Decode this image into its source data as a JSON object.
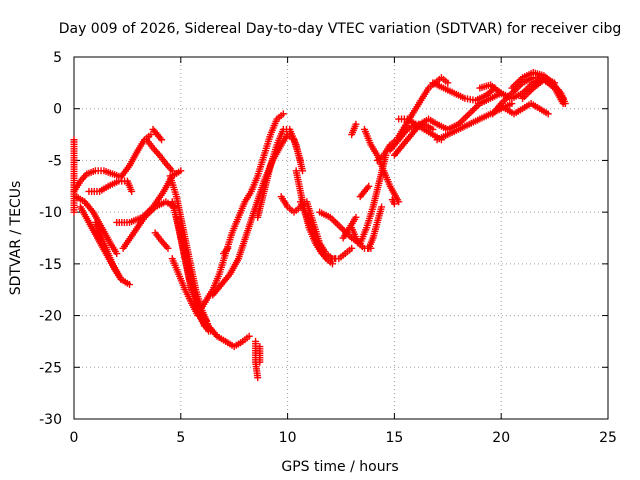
{
  "chart_data": {
    "type": "scatter",
    "title": "Day 009 of 2026, Sidereal Day-to-day VTEC variation (SDTVAR) for receiver cibg",
    "xlabel": "GPS time / hours",
    "ylabel": "SDTVAR / TECUs",
    "xlim": [
      0,
      25
    ],
    "ylim": [
      -30,
      5
    ],
    "xticks": [
      0,
      5,
      10,
      15,
      20,
      25
    ],
    "yticks": [
      -30,
      -25,
      -20,
      -15,
      -10,
      -5,
      0,
      5
    ],
    "grid": true,
    "marker": "plus",
    "color": "#ff0000",
    "series": [
      {
        "x": [
          0.0,
          0.3,
          0.6,
          1.0,
          1.4,
          1.8,
          2.2,
          2.6,
          3.0,
          3.3,
          3.6
        ],
        "y": [
          -8.0,
          -7.0,
          -6.3,
          -6.0,
          -6.0,
          -6.3,
          -6.6,
          -5.5,
          -4.0,
          -3.0,
          -2.5
        ]
      },
      {
        "x": [
          0.1,
          0.5,
          0.9,
          1.3,
          1.7,
          2.0
        ],
        "y": [
          -8.5,
          -9.0,
          -10.0,
          -11.5,
          -13.0,
          -14.0
        ]
      },
      {
        "x": [
          0.3,
          0.7,
          1.1,
          1.5,
          1.9,
          2.2
        ],
        "y": [
          -9.5,
          -11.0,
          -12.5,
          -14.0,
          -15.5,
          -16.5
        ]
      },
      {
        "x": [
          0.7,
          1.2,
          1.6,
          2.1,
          2.5,
          2.7
        ],
        "y": [
          -8.0,
          -8.0,
          -7.5,
          -7.0,
          -7.0,
          -8.0
        ]
      },
      {
        "x": [
          1.0,
          1.4,
          1.8,
          2.2,
          2.6
        ],
        "y": [
          -11.0,
          -13.0,
          -15.0,
          -16.5,
          -17.0
        ]
      },
      {
        "x": [
          2.0,
          2.6,
          3.2,
          3.7,
          4.2,
          4.6,
          5.0
        ],
        "y": [
          -11.0,
          -11.0,
          -10.5,
          -9.5,
          -8.0,
          -6.5,
          -6.0
        ]
      },
      {
        "x": [
          2.3,
          2.8,
          3.3,
          3.8,
          4.3,
          4.7
        ],
        "y": [
          -13.5,
          -12.0,
          -10.5,
          -9.5,
          -9.0,
          -9.5
        ]
      },
      {
        "x": [
          3.4,
          3.7,
          4.0,
          4.3,
          4.6
        ],
        "y": [
          -3.0,
          -3.8,
          -4.5,
          -5.3,
          -6.0
        ]
      },
      {
        "x": [
          3.7,
          3.9,
          4.1
        ],
        "y": [
          -2.0,
          -2.5,
          -3.0
        ]
      },
      {
        "x": [
          3.8,
          4.1,
          4.4
        ],
        "y": [
          -12.0,
          -12.8,
          -13.5
        ]
      },
      {
        "x": [
          4.5,
          4.8,
          5.1,
          5.4,
          5.7,
          6.0,
          6.3,
          6.7,
          7.1,
          7.5,
          7.9,
          8.2
        ],
        "y": [
          -6.5,
          -8.5,
          -11.5,
          -14.5,
          -17.5,
          -19.5,
          -21.0,
          -22.0,
          -22.5,
          -23.0,
          -22.5,
          -22.0
        ]
      },
      {
        "x": [
          4.6,
          4.9,
          5.2,
          5.5,
          5.8,
          6.1,
          6.4
        ],
        "y": [
          -9.0,
          -11.5,
          -14.5,
          -17.5,
          -19.5,
          -21.0,
          -21.5
        ]
      },
      {
        "x": [
          4.8,
          5.1,
          5.4,
          5.7,
          6.0,
          6.3
        ],
        "y": [
          -10.5,
          -13.5,
          -16.5,
          -19.0,
          -20.5,
          -21.5
        ]
      },
      {
        "x": [
          5.0,
          5.3,
          5.6,
          5.9,
          6.2
        ],
        "y": [
          -11.5,
          -14.5,
          -17.5,
          -19.5,
          -20.5
        ]
      },
      {
        "x": [
          4.6,
          4.9,
          5.2,
          5.5,
          5.8
        ],
        "y": [
          -14.5,
          -16.0,
          -17.5,
          -18.8,
          -20.0
        ]
      },
      {
        "x": [
          5.9,
          6.2,
          6.5,
          6.8,
          7.1,
          7.4,
          7.7,
          8.0,
          8.3,
          8.6,
          8.9,
          9.2,
          9.5,
          9.8
        ],
        "y": [
          -19.5,
          -18.5,
          -17.5,
          -16.0,
          -14.0,
          -12.0,
          -10.5,
          -9.0,
          -8.0,
          -6.5,
          -4.5,
          -2.5,
          -1.0,
          -0.5
        ]
      },
      {
        "x": [
          6.5,
          6.9,
          7.3,
          7.7,
          8.1,
          8.5,
          8.9,
          9.3,
          9.7,
          10.0,
          10.3,
          10.6
        ],
        "y": [
          -18.0,
          -17.0,
          -16.0,
          -14.5,
          -12.0,
          -9.5,
          -7.0,
          -5.0,
          -3.5,
          -2.5,
          -3.0,
          -5.0
        ]
      },
      {
        "x": [
          8.6,
          8.9,
          9.2,
          9.5,
          9.8,
          10.1,
          10.4,
          10.7
        ],
        "y": [
          -10.5,
          -8.0,
          -5.5,
          -3.5,
          -2.0,
          -2.0,
          -3.5,
          -6.0
        ]
      },
      {
        "x": [
          9.7,
          10.0,
          10.3,
          10.6,
          10.9,
          11.2,
          11.5,
          11.8,
          12.1,
          12.4,
          12.7,
          13.0
        ],
        "y": [
          -8.5,
          -9.5,
          -10.0,
          -9.5,
          -9.0,
          -11.0,
          -13.0,
          -14.0,
          -14.5,
          -14.5,
          -14.0,
          -13.5
        ]
      },
      {
        "x": [
          10.4,
          10.7,
          11.0,
          11.3,
          11.6,
          11.9,
          12.2
        ],
        "y": [
          -6.0,
          -9.0,
          -11.5,
          -13.0,
          -14.0,
          -14.5,
          -14.5
        ]
      },
      {
        "x": [
          10.6,
          10.9,
          11.2,
          11.5,
          11.8,
          12.1
        ],
        "y": [
          -9.0,
          -10.5,
          -12.0,
          -13.5,
          -14.5,
          -15.0
        ]
      },
      {
        "x": [
          11.5,
          12.0,
          12.5,
          13.0,
          13.4
        ],
        "y": [
          -10.0,
          -10.5,
          -11.5,
          -12.5,
          -13.0
        ]
      },
      {
        "x": [
          12.6,
          12.9,
          13.2
        ],
        "y": [
          -12.5,
          -11.5,
          -10.5
        ]
      },
      {
        "x": [
          13.0,
          13.3,
          13.6,
          13.9
        ],
        "y": [
          -11.5,
          -13.0,
          -13.5,
          -13.5
        ]
      },
      {
        "x": [
          13.4,
          13.6,
          13.8
        ],
        "y": [
          -8.5,
          -8.0,
          -7.5
        ]
      },
      {
        "x": [
          13.0,
          13.2
        ],
        "y": [
          -2.5,
          -1.5
        ]
      },
      {
        "x": [
          13.6,
          13.9,
          14.2,
          14.5,
          14.8,
          15.2
        ],
        "y": [
          -2.0,
          -3.5,
          -4.5,
          -6.0,
          -7.5,
          -9.0
        ]
      },
      {
        "x": [
          13.8,
          14.0,
          14.2,
          14.4
        ],
        "y": [
          -13.5,
          -12.5,
          -11.0,
          -9.5
        ]
      },
      {
        "x": [
          13.4,
          13.7,
          14.0,
          14.3,
          14.6
        ],
        "y": [
          -13.0,
          -11.5,
          -9.5,
          -7.0,
          -4.5
        ]
      },
      {
        "x": [
          14.2,
          14.5,
          14.8,
          15.1,
          15.4,
          15.7,
          16.0,
          16.3,
          16.6,
          16.9,
          17.2,
          17.5
        ],
        "y": [
          -5.0,
          -4.5,
          -3.5,
          -3.0,
          -2.0,
          -1.0,
          0.0,
          1.0,
          2.0,
          2.5,
          3.0,
          2.5
        ]
      },
      {
        "x": [
          14.8,
          15.2,
          15.6,
          16.0,
          16.4,
          16.8
        ],
        "y": [
          -4.0,
          -3.0,
          -2.0,
          -1.5,
          -1.5,
          -2.0
        ]
      },
      {
        "x": [
          15.0,
          15.4,
          15.8,
          16.2,
          16.6,
          17.0,
          17.5,
          18.0,
          18.5,
          19.0,
          19.5,
          20.0
        ],
        "y": [
          -4.5,
          -3.5,
          -2.5,
          -1.5,
          -1.0,
          -1.5,
          -2.0,
          -1.5,
          -0.5,
          0.5,
          1.0,
          1.5
        ]
      },
      {
        "x": [
          15.2,
          15.6,
          16.0,
          16.4,
          16.8,
          17.2
        ],
        "y": [
          -1.0,
          -1.0,
          -1.5,
          -2.0,
          -2.5,
          -3.0
        ]
      },
      {
        "x": [
          16.8,
          17.3,
          17.8,
          18.3,
          18.8,
          19.3,
          19.7
        ],
        "y": [
          2.5,
          2.0,
          1.5,
          1.0,
          0.8,
          1.3,
          2.0
        ]
      },
      {
        "x": [
          17.0,
          17.5,
          18.0,
          18.5,
          19.0,
          19.5,
          20.0,
          20.5
        ],
        "y": [
          -3.0,
          -2.5,
          -2.0,
          -1.5,
          -1.0,
          -0.5,
          0.0,
          0.5
        ]
      },
      {
        "x": [
          19.0,
          19.5,
          20.0,
          20.5,
          21.0,
          21.5,
          22.0,
          22.5,
          22.9
        ],
        "y": [
          2.0,
          2.3,
          1.5,
          1.0,
          1.5,
          2.5,
          3.0,
          2.0,
          0.5
        ]
      },
      {
        "x": [
          19.6,
          20.0,
          20.5,
          21.0,
          21.5,
          22.0,
          22.5
        ],
        "y": [
          -0.5,
          0.5,
          1.5,
          2.5,
          3.0,
          3.0,
          2.5
        ]
      },
      {
        "x": [
          20.2,
          20.6,
          21.0,
          21.4,
          21.8,
          22.2
        ],
        "y": [
          0.0,
          -0.5,
          0.0,
          0.5,
          0.0,
          -0.5
        ]
      },
      {
        "x": [
          20.5,
          21.0,
          21.5,
          22.0,
          22.4,
          22.8,
          23.0
        ],
        "y": [
          2.0,
          3.0,
          3.5,
          3.2,
          2.5,
          1.5,
          0.5
        ]
      },
      {
        "x": [
          21.0,
          21.5,
          22.0,
          22.5,
          22.9
        ],
        "y": [
          1.0,
          2.0,
          2.8,
          2.0,
          1.0
        ]
      },
      {
        "x": [
          0.0,
          0.0
        ],
        "y": [
          -3.0,
          -10.0
        ]
      },
      {
        "x": [
          8.5,
          8.5,
          8.6
        ],
        "y": [
          -22.5,
          -24.5,
          -26.0
        ]
      },
      {
        "x": [
          8.7,
          8.7
        ],
        "y": [
          -23.0,
          -24.5
        ]
      },
      {
        "x": [
          7.0,
          7.2
        ],
        "y": [
          -14.0,
          -13.5
        ]
      },
      {
        "x": [
          14.9,
          15.0
        ],
        "y": [
          -8.8,
          -9.2
        ]
      }
    ]
  }
}
